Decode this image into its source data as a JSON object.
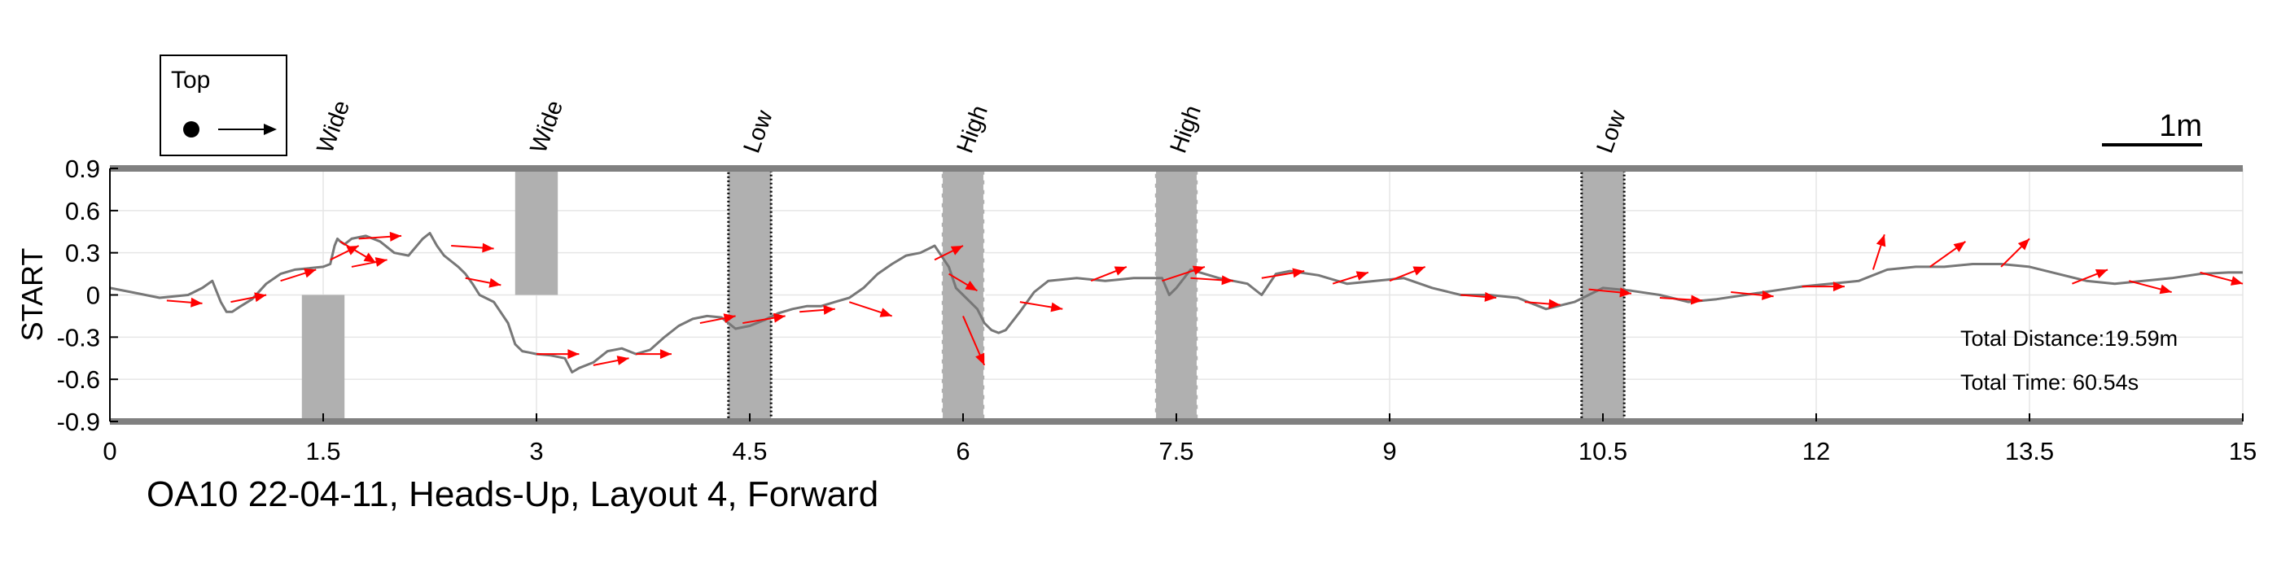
{
  "chart_data": {
    "type": "line",
    "title": "OA10 22-04-11, Heads-Up, Layout 4, Forward",
    "ylabel": "START",
    "xlabel": "",
    "xlim": [
      0,
      15
    ],
    "ylim": [
      -0.9,
      0.9
    ],
    "xticks": [
      0,
      1.5,
      3,
      4.5,
      6,
      7.5,
      9,
      10.5,
      12,
      13.5,
      15
    ],
    "xtick_labels": [
      "0",
      "1.5",
      "3",
      "4.5",
      "6",
      "7.5",
      "9",
      "10.5",
      "12",
      "13.5",
      "15"
    ],
    "yticks": [
      0.9,
      0.6,
      0.3,
      0,
      -0.3,
      -0.6,
      -0.9
    ],
    "ytick_labels": [
      "0.9",
      "0.6",
      "0.3",
      "0",
      "-0.3",
      "-0.6",
      "-0.9"
    ],
    "grid": true,
    "legend": {
      "label": "Top",
      "position": "top-left"
    },
    "scale_bar": {
      "label": "1m",
      "length": 1.0
    },
    "annotations": [
      "Total Distance:19.59m",
      "Total Time: 60.54s"
    ],
    "colors": {
      "path": "#777777",
      "arrows": "#ff0000",
      "obstacle": "#b0b0b0",
      "boundary": "#808080"
    },
    "obstacles": [
      {
        "label": "Wide",
        "x": [
          1.35,
          1.65
        ],
        "y": [
          -0.9,
          0.0
        ],
        "border": "none"
      },
      {
        "label": "Wide",
        "x": [
          2.85,
          3.15
        ],
        "y": [
          0.0,
          0.9
        ],
        "border": "none"
      },
      {
        "label": "Low",
        "x": [
          4.35,
          4.65
        ],
        "y": [
          -0.9,
          0.9
        ],
        "border": "dotted-dark"
      },
      {
        "label": "High",
        "x": [
          5.85,
          6.15
        ],
        "y": [
          -0.9,
          0.9
        ],
        "border": "dashed-light"
      },
      {
        "label": "High",
        "x": [
          7.35,
          7.65
        ],
        "y": [
          -0.9,
          0.9
        ],
        "border": "dashed-light"
      },
      {
        "label": "Low",
        "x": [
          10.35,
          10.65
        ],
        "y": [
          -0.9,
          0.9
        ],
        "border": "dotted-dark"
      }
    ],
    "series": [
      {
        "x": [
          0,
          0.15,
          0.35,
          0.55,
          0.65,
          0.72,
          0.78,
          0.82,
          0.86,
          0.92,
          1.0,
          1.1,
          1.2,
          1.3,
          1.4,
          1.5,
          1.55,
          1.58,
          1.6,
          1.62,
          1.65,
          1.7,
          1.8,
          1.9,
          2.0,
          2.1,
          2.2,
          2.25,
          2.3,
          2.35,
          2.4,
          2.45,
          2.5,
          2.55,
          2.6,
          2.7,
          2.8,
          2.85,
          2.9,
          2.95,
          3.0,
          3.1,
          3.2,
          3.25,
          3.3,
          3.4,
          3.5,
          3.6,
          3.7,
          3.8,
          3.9,
          4.0,
          4.1,
          4.2,
          4.3,
          4.4,
          4.5,
          4.6,
          4.7,
          4.8,
          4.9,
          5.0,
          5.1,
          5.2,
          5.3,
          5.4,
          5.5,
          5.6,
          5.7,
          5.8,
          5.9,
          5.95,
          6.0,
          6.05,
          6.1,
          6.15,
          6.2,
          6.25,
          6.3,
          6.4,
          6.5,
          6.6,
          6.8,
          7.0,
          7.2,
          7.4,
          7.45,
          7.5,
          7.6,
          7.8,
          8.0,
          8.1,
          8.2,
          8.3,
          8.5,
          8.7,
          8.9,
          9.1,
          9.3,
          9.5,
          9.7,
          9.9,
          10.1,
          10.3,
          10.5,
          10.7,
          10.9,
          11.1,
          11.3,
          11.5,
          11.7,
          11.9,
          12.1,
          12.3,
          12.5,
          12.7,
          12.9,
          13.1,
          13.3,
          13.5,
          13.7,
          13.9,
          14.1,
          14.3,
          14.5,
          14.7,
          14.9,
          15.0
        ],
        "y": [
          0.05,
          0.02,
          -0.02,
          0.0,
          0.05,
          0.1,
          -0.05,
          -0.12,
          -0.12,
          -0.08,
          -0.03,
          0.08,
          0.15,
          0.18,
          0.19,
          0.2,
          0.22,
          0.35,
          0.4,
          0.38,
          0.36,
          0.4,
          0.42,
          0.38,
          0.3,
          0.28,
          0.4,
          0.44,
          0.35,
          0.28,
          0.24,
          0.2,
          0.15,
          0.08,
          0.0,
          -0.05,
          -0.2,
          -0.35,
          -0.4,
          -0.41,
          -0.42,
          -0.43,
          -0.45,
          -0.55,
          -0.52,
          -0.48,
          -0.4,
          -0.38,
          -0.42,
          -0.39,
          -0.3,
          -0.22,
          -0.17,
          -0.15,
          -0.16,
          -0.24,
          -0.22,
          -0.18,
          -0.13,
          -0.1,
          -0.08,
          -0.08,
          -0.05,
          -0.02,
          0.05,
          0.15,
          0.22,
          0.28,
          0.3,
          0.35,
          0.2,
          0.05,
          0.0,
          -0.05,
          -0.1,
          -0.2,
          -0.25,
          -0.27,
          -0.25,
          -0.12,
          0.02,
          0.1,
          0.12,
          0.1,
          0.12,
          0.12,
          0.0,
          0.05,
          0.18,
          0.12,
          0.08,
          0.0,
          0.15,
          0.17,
          0.14,
          0.08,
          0.1,
          0.12,
          0.05,
          0.0,
          0.0,
          -0.02,
          -0.1,
          -0.05,
          0.05,
          0.03,
          0.0,
          -0.05,
          -0.03,
          0.0,
          0.03,
          0.06,
          0.08,
          0.1,
          0.18,
          0.2,
          0.2,
          0.22,
          0.22,
          0.2,
          0.15,
          0.1,
          0.08,
          0.1,
          0.12,
          0.15,
          0.16,
          0.16
        ]
      }
    ],
    "arrows": [
      {
        "x": 0.4,
        "y": -0.04,
        "dx": 0.25,
        "dy": -0.02
      },
      {
        "x": 0.85,
        "y": -0.05,
        "dx": 0.25,
        "dy": 0.05
      },
      {
        "x": 1.2,
        "y": 0.1,
        "dx": 0.25,
        "dy": 0.08
      },
      {
        "x": 1.55,
        "y": 0.25,
        "dx": 0.2,
        "dy": 0.1
      },
      {
        "x": 1.62,
        "y": 0.38,
        "dx": 0.25,
        "dy": -0.15
      },
      {
        "x": 1.7,
        "y": 0.2,
        "dx": 0.25,
        "dy": 0.05
      },
      {
        "x": 1.75,
        "y": 0.4,
        "dx": 0.3,
        "dy": 0.02
      },
      {
        "x": 2.4,
        "y": 0.35,
        "dx": 0.3,
        "dy": -0.02
      },
      {
        "x": 2.5,
        "y": 0.12,
        "dx": 0.25,
        "dy": -0.05
      },
      {
        "x": 3.0,
        "y": -0.42,
        "dx": 0.3,
        "dy": 0.0
      },
      {
        "x": 3.4,
        "y": -0.5,
        "dx": 0.25,
        "dy": 0.05
      },
      {
        "x": 3.7,
        "y": -0.42,
        "dx": 0.25,
        "dy": 0.0
      },
      {
        "x": 4.15,
        "y": -0.2,
        "dx": 0.25,
        "dy": 0.05
      },
      {
        "x": 4.45,
        "y": -0.2,
        "dx": 0.3,
        "dy": 0.05
      },
      {
        "x": 4.85,
        "y": -0.12,
        "dx": 0.25,
        "dy": 0.02
      },
      {
        "x": 5.2,
        "y": -0.05,
        "dx": 0.3,
        "dy": -0.1
      },
      {
        "x": 5.8,
        "y": 0.25,
        "dx": 0.2,
        "dy": 0.1
      },
      {
        "x": 5.9,
        "y": 0.15,
        "dx": 0.2,
        "dy": -0.12
      },
      {
        "x": 6.0,
        "y": -0.15,
        "dx": 0.15,
        "dy": -0.35
      },
      {
        "x": 6.4,
        "y": -0.05,
        "dx": 0.3,
        "dy": -0.05
      },
      {
        "x": 6.9,
        "y": 0.1,
        "dx": 0.25,
        "dy": 0.1
      },
      {
        "x": 7.4,
        "y": 0.1,
        "dx": 0.3,
        "dy": 0.1
      },
      {
        "x": 7.6,
        "y": 0.12,
        "dx": 0.3,
        "dy": -0.02
      },
      {
        "x": 8.1,
        "y": 0.12,
        "dx": 0.3,
        "dy": 0.05
      },
      {
        "x": 8.6,
        "y": 0.08,
        "dx": 0.25,
        "dy": 0.08
      },
      {
        "x": 9.0,
        "y": 0.1,
        "dx": 0.25,
        "dy": 0.1
      },
      {
        "x": 9.5,
        "y": 0.0,
        "dx": 0.25,
        "dy": -0.02
      },
      {
        "x": 9.95,
        "y": -0.05,
        "dx": 0.25,
        "dy": -0.02
      },
      {
        "x": 10.4,
        "y": 0.04,
        "dx": 0.3,
        "dy": -0.03
      },
      {
        "x": 10.9,
        "y": -0.02,
        "dx": 0.3,
        "dy": -0.02
      },
      {
        "x": 11.4,
        "y": 0.02,
        "dx": 0.3,
        "dy": -0.03
      },
      {
        "x": 11.9,
        "y": 0.06,
        "dx": 0.3,
        "dy": 0.0
      },
      {
        "x": 12.4,
        "y": 0.18,
        "dx": 0.08,
        "dy": 0.25
      },
      {
        "x": 12.8,
        "y": 0.2,
        "dx": 0.25,
        "dy": 0.18
      },
      {
        "x": 13.3,
        "y": 0.2,
        "dx": 0.2,
        "dy": 0.2
      },
      {
        "x": 13.8,
        "y": 0.08,
        "dx": 0.25,
        "dy": 0.1
      },
      {
        "x": 14.2,
        "y": 0.1,
        "dx": 0.3,
        "dy": -0.08
      },
      {
        "x": 14.7,
        "y": 0.16,
        "dx": 0.3,
        "dy": -0.08
      }
    ]
  }
}
